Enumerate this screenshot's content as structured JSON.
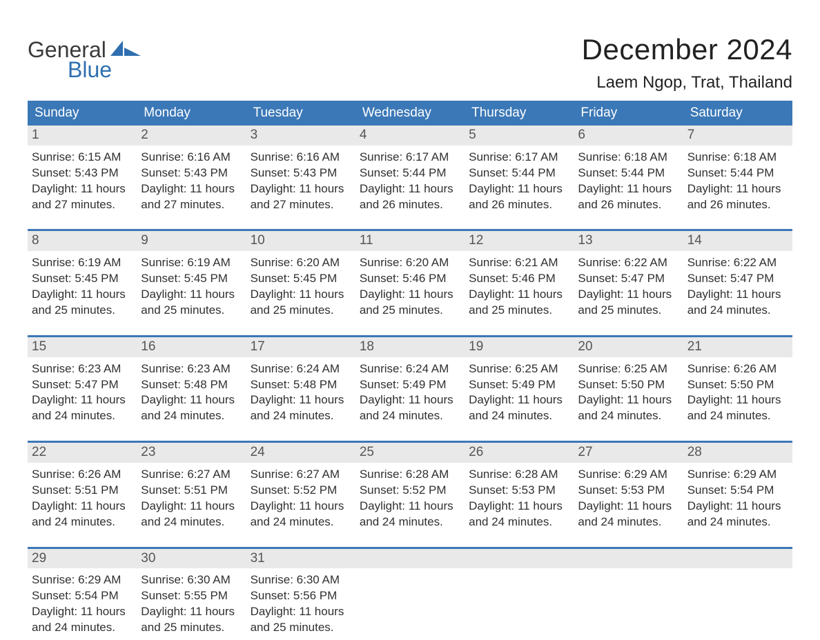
{
  "colors": {
    "header_bg": "#3b78b7",
    "header_text": "#ffffff",
    "daynum_bg": "#e9e9e9",
    "daynum_text": "#555555",
    "body_text": "#303030",
    "page_bg": "#ffffff",
    "week_divider": "#3b78b7",
    "logo_gray": "#3a3a3a",
    "logo_blue": "#2f6fb0"
  },
  "logo": {
    "word1": "General",
    "word2": "Blue"
  },
  "title": "December 2024",
  "location": "Laem Ngop, Trat, Thailand",
  "day_names": [
    "Sunday",
    "Monday",
    "Tuesday",
    "Wednesday",
    "Thursday",
    "Friday",
    "Saturday"
  ],
  "weeks": [
    [
      {
        "n": "1",
        "sunrise": "Sunrise: 6:15 AM",
        "sunset": "Sunset: 5:43 PM",
        "d1": "Daylight: 11 hours",
        "d2": "and 27 minutes."
      },
      {
        "n": "2",
        "sunrise": "Sunrise: 6:16 AM",
        "sunset": "Sunset: 5:43 PM",
        "d1": "Daylight: 11 hours",
        "d2": "and 27 minutes."
      },
      {
        "n": "3",
        "sunrise": "Sunrise: 6:16 AM",
        "sunset": "Sunset: 5:43 PM",
        "d1": "Daylight: 11 hours",
        "d2": "and 27 minutes."
      },
      {
        "n": "4",
        "sunrise": "Sunrise: 6:17 AM",
        "sunset": "Sunset: 5:44 PM",
        "d1": "Daylight: 11 hours",
        "d2": "and 26 minutes."
      },
      {
        "n": "5",
        "sunrise": "Sunrise: 6:17 AM",
        "sunset": "Sunset: 5:44 PM",
        "d1": "Daylight: 11 hours",
        "d2": "and 26 minutes."
      },
      {
        "n": "6",
        "sunrise": "Sunrise: 6:18 AM",
        "sunset": "Sunset: 5:44 PM",
        "d1": "Daylight: 11 hours",
        "d2": "and 26 minutes."
      },
      {
        "n": "7",
        "sunrise": "Sunrise: 6:18 AM",
        "sunset": "Sunset: 5:44 PM",
        "d1": "Daylight: 11 hours",
        "d2": "and 26 minutes."
      }
    ],
    [
      {
        "n": "8",
        "sunrise": "Sunrise: 6:19 AM",
        "sunset": "Sunset: 5:45 PM",
        "d1": "Daylight: 11 hours",
        "d2": "and 25 minutes."
      },
      {
        "n": "9",
        "sunrise": "Sunrise: 6:19 AM",
        "sunset": "Sunset: 5:45 PM",
        "d1": "Daylight: 11 hours",
        "d2": "and 25 minutes."
      },
      {
        "n": "10",
        "sunrise": "Sunrise: 6:20 AM",
        "sunset": "Sunset: 5:45 PM",
        "d1": "Daylight: 11 hours",
        "d2": "and 25 minutes."
      },
      {
        "n": "11",
        "sunrise": "Sunrise: 6:20 AM",
        "sunset": "Sunset: 5:46 PM",
        "d1": "Daylight: 11 hours",
        "d2": "and 25 minutes."
      },
      {
        "n": "12",
        "sunrise": "Sunrise: 6:21 AM",
        "sunset": "Sunset: 5:46 PM",
        "d1": "Daylight: 11 hours",
        "d2": "and 25 minutes."
      },
      {
        "n": "13",
        "sunrise": "Sunrise: 6:22 AM",
        "sunset": "Sunset: 5:47 PM",
        "d1": "Daylight: 11 hours",
        "d2": "and 25 minutes."
      },
      {
        "n": "14",
        "sunrise": "Sunrise: 6:22 AM",
        "sunset": "Sunset: 5:47 PM",
        "d1": "Daylight: 11 hours",
        "d2": "and 24 minutes."
      }
    ],
    [
      {
        "n": "15",
        "sunrise": "Sunrise: 6:23 AM",
        "sunset": "Sunset: 5:47 PM",
        "d1": "Daylight: 11 hours",
        "d2": "and 24 minutes."
      },
      {
        "n": "16",
        "sunrise": "Sunrise: 6:23 AM",
        "sunset": "Sunset: 5:48 PM",
        "d1": "Daylight: 11 hours",
        "d2": "and 24 minutes."
      },
      {
        "n": "17",
        "sunrise": "Sunrise: 6:24 AM",
        "sunset": "Sunset: 5:48 PM",
        "d1": "Daylight: 11 hours",
        "d2": "and 24 minutes."
      },
      {
        "n": "18",
        "sunrise": "Sunrise: 6:24 AM",
        "sunset": "Sunset: 5:49 PM",
        "d1": "Daylight: 11 hours",
        "d2": "and 24 minutes."
      },
      {
        "n": "19",
        "sunrise": "Sunrise: 6:25 AM",
        "sunset": "Sunset: 5:49 PM",
        "d1": "Daylight: 11 hours",
        "d2": "and 24 minutes."
      },
      {
        "n": "20",
        "sunrise": "Sunrise: 6:25 AM",
        "sunset": "Sunset: 5:50 PM",
        "d1": "Daylight: 11 hours",
        "d2": "and 24 minutes."
      },
      {
        "n": "21",
        "sunrise": "Sunrise: 6:26 AM",
        "sunset": "Sunset: 5:50 PM",
        "d1": "Daylight: 11 hours",
        "d2": "and 24 minutes."
      }
    ],
    [
      {
        "n": "22",
        "sunrise": "Sunrise: 6:26 AM",
        "sunset": "Sunset: 5:51 PM",
        "d1": "Daylight: 11 hours",
        "d2": "and 24 minutes."
      },
      {
        "n": "23",
        "sunrise": "Sunrise: 6:27 AM",
        "sunset": "Sunset: 5:51 PM",
        "d1": "Daylight: 11 hours",
        "d2": "and 24 minutes."
      },
      {
        "n": "24",
        "sunrise": "Sunrise: 6:27 AM",
        "sunset": "Sunset: 5:52 PM",
        "d1": "Daylight: 11 hours",
        "d2": "and 24 minutes."
      },
      {
        "n": "25",
        "sunrise": "Sunrise: 6:28 AM",
        "sunset": "Sunset: 5:52 PM",
        "d1": "Daylight: 11 hours",
        "d2": "and 24 minutes."
      },
      {
        "n": "26",
        "sunrise": "Sunrise: 6:28 AM",
        "sunset": "Sunset: 5:53 PM",
        "d1": "Daylight: 11 hours",
        "d2": "and 24 minutes."
      },
      {
        "n": "27",
        "sunrise": "Sunrise: 6:29 AM",
        "sunset": "Sunset: 5:53 PM",
        "d1": "Daylight: 11 hours",
        "d2": "and 24 minutes."
      },
      {
        "n": "28",
        "sunrise": "Sunrise: 6:29 AM",
        "sunset": "Sunset: 5:54 PM",
        "d1": "Daylight: 11 hours",
        "d2": "and 24 minutes."
      }
    ],
    [
      {
        "n": "29",
        "sunrise": "Sunrise: 6:29 AM",
        "sunset": "Sunset: 5:54 PM",
        "d1": "Daylight: 11 hours",
        "d2": "and 24 minutes."
      },
      {
        "n": "30",
        "sunrise": "Sunrise: 6:30 AM",
        "sunset": "Sunset: 5:55 PM",
        "d1": "Daylight: 11 hours",
        "d2": "and 25 minutes."
      },
      {
        "n": "31",
        "sunrise": "Sunrise: 6:30 AM",
        "sunset": "Sunset: 5:56 PM",
        "d1": "Daylight: 11 hours",
        "d2": "and 25 minutes."
      },
      null,
      null,
      null,
      null
    ]
  ]
}
